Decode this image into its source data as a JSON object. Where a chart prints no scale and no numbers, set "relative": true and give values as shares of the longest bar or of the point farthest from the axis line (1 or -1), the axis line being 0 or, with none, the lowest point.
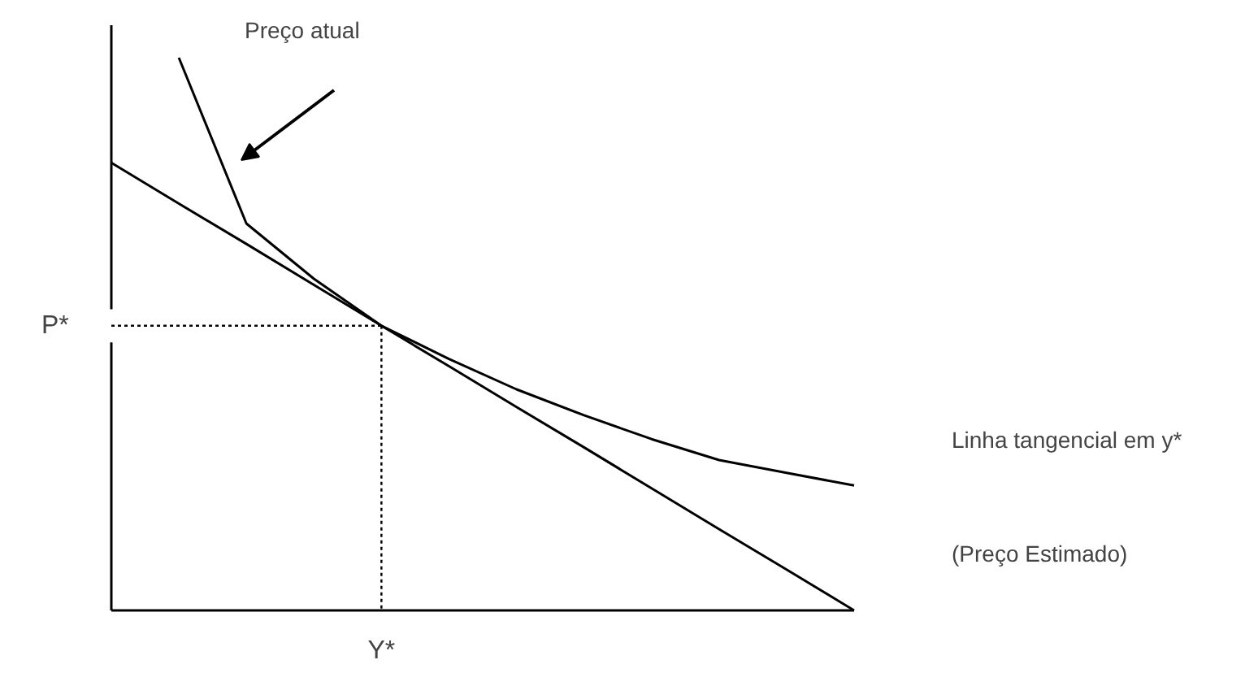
{
  "chart_data": {
    "type": "line",
    "relative": true,
    "grid": false,
    "categories": [
      null,
      null,
      null,
      null,
      null,
      null,
      null,
      null,
      null,
      null,
      null,
      null
    ],
    "series": [
      {
        "color": "#000000",
        "values": [
          null,
          1.0,
          0.7,
          0.6,
          0.515,
          0.455,
          0.4,
          0.353,
          0.31,
          0.272,
          0.249,
          0.226
        ]
      },
      {
        "color": "#000000",
        "values": [
          0.81,
          0.736,
          0.663,
          0.589,
          0.515,
          0.442,
          0.368,
          0.295,
          0.221,
          0.147,
          0.074,
          0
        ]
      }
    ],
    "ref_lines": [
      {
        "axis": "y",
        "value": 0.515,
        "label": "P*",
        "line_style": "dotted",
        "color": "#000000"
      }
    ],
    "annotations": [
      "Preço atual",
      "Linha tangencial em y*",
      "(Preço Estimado)",
      "Y*"
    ]
  }
}
